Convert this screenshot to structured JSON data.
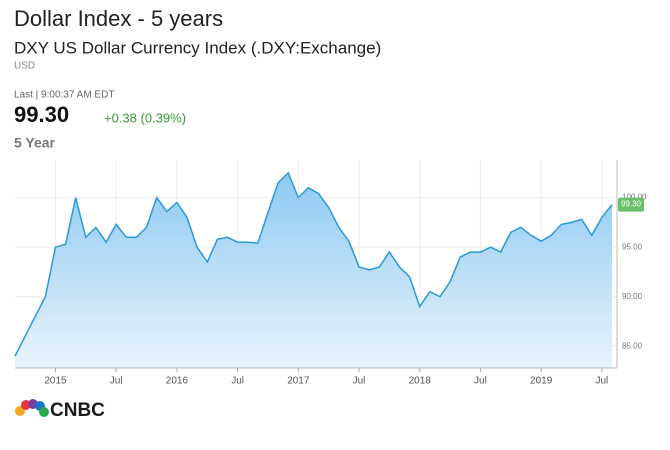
{
  "chart_data": {
    "type": "area",
    "title": "Dollar Index - 5 years",
    "subtitle": "DXY US Dollar Currency Index (.DXY:Exchange)",
    "quote": {
      "currency": "USD",
      "timestamp": "Last | 9:00:37 AM EDT",
      "last": "99.30",
      "change": "+0.38 (0.39%)",
      "period": "5 Year"
    },
    "logo": "CNBC",
    "x": [
      "2014-09",
      "2014-10",
      "2014-11",
      "2014-12",
      "2015-01",
      "2015-02",
      "2015-03",
      "2015-04",
      "2015-05",
      "2015-06",
      "2015-07",
      "2015-08",
      "2015-09",
      "2015-10",
      "2015-11",
      "2015-12",
      "2016-01",
      "2016-02",
      "2016-03",
      "2016-04",
      "2016-05",
      "2016-06",
      "2016-07",
      "2016-08",
      "2016-09",
      "2016-10",
      "2016-11",
      "2016-12",
      "2017-01",
      "2017-02",
      "2017-03",
      "2017-04",
      "2017-05",
      "2017-06",
      "2017-07",
      "2017-08",
      "2017-09",
      "2017-10",
      "2017-11",
      "2017-12",
      "2018-01",
      "2018-02",
      "2018-03",
      "2018-04",
      "2018-05",
      "2018-06",
      "2018-07",
      "2018-08",
      "2018-09",
      "2018-10",
      "2018-11",
      "2018-12",
      "2019-01",
      "2019-02",
      "2019-03",
      "2019-04",
      "2019-05",
      "2019-06",
      "2019-07",
      "2019-08"
    ],
    "series": [
      {
        "name": "DXY",
        "color": "#2a9ad6",
        "values": [
          84.0,
          86.0,
          88.0,
          90.0,
          95.0,
          95.3,
          100.0,
          96.0,
          97.0,
          95.5,
          97.3,
          96.0,
          96.0,
          97.0,
          100.0,
          98.6,
          99.5,
          98.0,
          95.0,
          93.5,
          95.8,
          96.0,
          95.5,
          95.5,
          95.4,
          98.5,
          101.5,
          102.5,
          100.0,
          101.0,
          100.4,
          99.0,
          97.0,
          95.6,
          93.0,
          92.7,
          93.0,
          94.5,
          93.0,
          92.0,
          89.0,
          90.5,
          90.0,
          91.5,
          94.0,
          94.5,
          94.5,
          95.0,
          94.5,
          96.5,
          97.0,
          96.2,
          95.6,
          96.2,
          97.3,
          97.5,
          97.8,
          96.2,
          98.0,
          99.3
        ]
      }
    ],
    "xlim": [
      "2014-09",
      "2019-08"
    ],
    "xticks": [
      {
        "value": "2015-01",
        "label": "2015"
      },
      {
        "value": "2015-07",
        "label": "Jul"
      },
      {
        "value": "2016-01",
        "label": "2016"
      },
      {
        "value": "2016-07",
        "label": "Jul"
      },
      {
        "value": "2017-01",
        "label": "2017"
      },
      {
        "value": "2017-07",
        "label": "Jul"
      },
      {
        "value": "2018-01",
        "label": "2018"
      },
      {
        "value": "2018-07",
        "label": "Jul"
      },
      {
        "value": "2019-01",
        "label": "2019"
      },
      {
        "value": "2019-07",
        "label": "Jul"
      }
    ],
    "ylim": [
      82.8,
      103.8
    ],
    "yticks": [
      {
        "value": 85,
        "label": "85.00"
      },
      {
        "value": 90,
        "label": "90.00"
      },
      {
        "value": 95,
        "label": "95.00"
      },
      {
        "value": 100,
        "label": "100.00"
      }
    ],
    "grid": true
  }
}
